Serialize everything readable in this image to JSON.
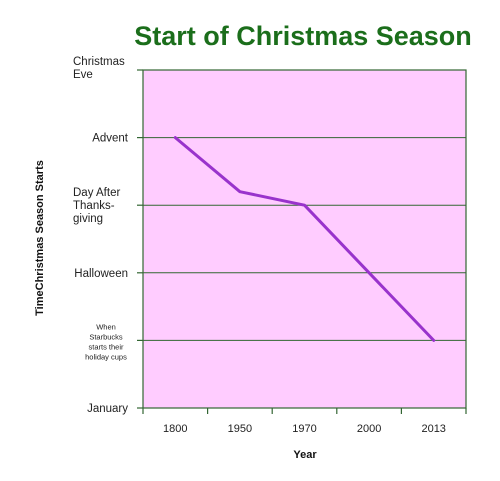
{
  "chart_data": {
    "type": "line",
    "title": "Start of Christmas Season",
    "xlabel": "Year",
    "ylabel": "TimeChristmas Season Starts",
    "categories": [
      "1800",
      "1950",
      "1970",
      "2000",
      "2013"
    ],
    "y_ticks": [
      "January",
      "When Starbucks starts their holiday cups",
      "Halloween",
      "Day After Thanks-giving",
      "Advent",
      "Christmas Eve"
    ],
    "y_tick_lines": [
      [
        "January"
      ],
      [
        "When",
        "Starbucks",
        "starts their",
        "holiday cups"
      ],
      [
        "Halloween"
      ],
      [
        "Day After",
        "Thanks-",
        "giving"
      ],
      [
        "Advent"
      ],
      [
        "Christmas",
        "Eve"
      ]
    ],
    "ylim": [
      0,
      5
    ],
    "series": [
      {
        "values": [
          4,
          3.2,
          3,
          2,
          1
        ]
      }
    ],
    "grid": true,
    "colors": {
      "plot_background": "#ffccff",
      "line": "#9933cc",
      "axis": "#336633",
      "title": "#1b6e1b"
    }
  }
}
